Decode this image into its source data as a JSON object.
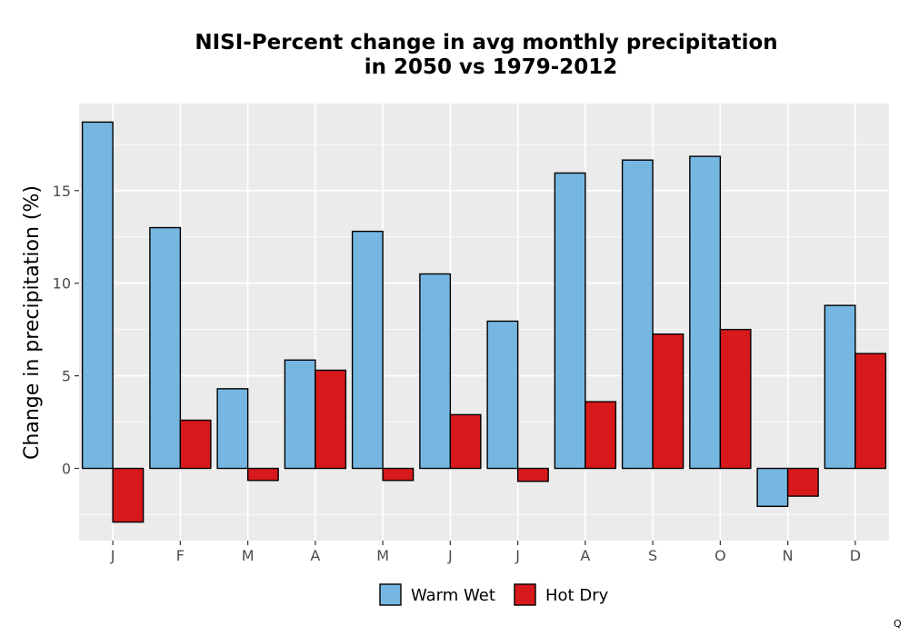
{
  "chart_data": {
    "type": "bar",
    "title_lines": [
      "NISI-Percent change in avg monthly precipitation",
      "in 2050 vs 1979-2012"
    ],
    "xlabel": "",
    "ylabel": "Change in precipitation (%)",
    "categories": [
      "J",
      "F",
      "M",
      "A",
      "M",
      "J",
      "J",
      "A",
      "S",
      "O",
      "N",
      "D"
    ],
    "series": [
      {
        "name": "Warm Wet",
        "color": "#76b7e2",
        "values": [
          18.7,
          13.0,
          4.3,
          5.85,
          12.8,
          10.5,
          7.95,
          15.95,
          16.65,
          16.85,
          -2.05,
          8.8
        ]
      },
      {
        "name": "Hot Dry",
        "color": "#d7191c",
        "values": [
          -2.9,
          2.6,
          -0.65,
          5.3,
          -0.65,
          2.9,
          -0.7,
          3.6,
          7.25,
          7.5,
          -1.5,
          6.2
        ]
      }
    ],
    "y_ticks": [
      0,
      5,
      10,
      15
    ],
    "ylim": [
      -3.9,
      19.7
    ],
    "grid": true,
    "panel_background": "#ebebeb",
    "legend_position": "bottom"
  },
  "corner_note": "Q"
}
